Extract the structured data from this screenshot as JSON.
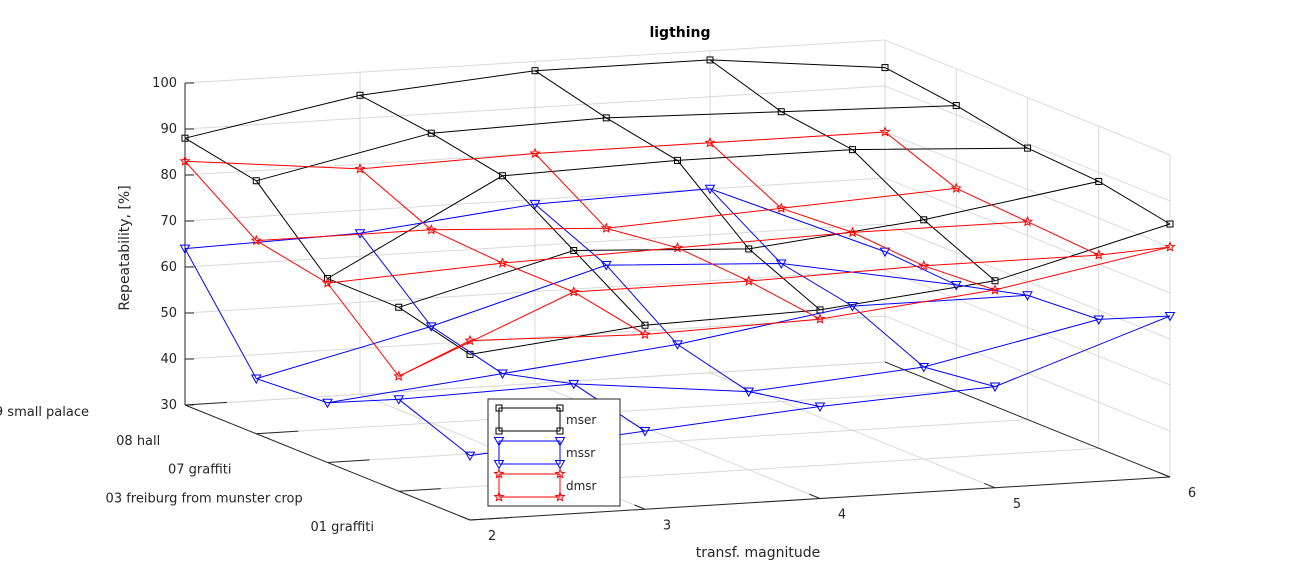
{
  "chart_data": {
    "type": "line",
    "title": "ligthing",
    "xlabel": "transf. magnitude",
    "ylabel": "",
    "zlabel": "Repeatability, [%]",
    "x": [
      2,
      3,
      4,
      5,
      6
    ],
    "x_ticks": [
      "2",
      "3",
      "4",
      "5",
      "6"
    ],
    "y_categories": [
      "01 graffiti",
      "03 freiburg from munster crop",
      "07 graffiti",
      "08 hall",
      "09 small palace"
    ],
    "z_ticks": [
      "30",
      "40",
      "50",
      "60",
      "70",
      "80",
      "90",
      "100"
    ],
    "zlim": [
      30,
      100
    ],
    "grid": true,
    "legend_position": "inside-bottom-left",
    "series": [
      {
        "name": "mser",
        "color": "#000000",
        "marker": "square",
        "lines": [
          {
            "category": "09 small palace",
            "values": [
              88,
              95,
              98,
              98,
              94
            ]
          },
          {
            "category": "08 hall",
            "values": [
              85,
              93,
              94,
              93,
              92
            ]
          },
          {
            "category": "07 graffiti",
            "values": [
              70,
              90,
              91,
              91,
              89
            ]
          },
          {
            "category": "03 freiburg from munster crop",
            "values": [
              70,
              80,
              78,
              82,
              88
            ]
          },
          {
            "category": "01 graffiti",
            "values": [
              66,
              70,
              71,
              75,
              85
            ]
          }
        ]
      },
      {
        "name": "mssr",
        "color": "#0000ff",
        "marker": "triangle-down",
        "lines": [
          {
            "category": "09 small palace",
            "values": [
              64,
              65,
              69,
              70,
              54
            ]
          },
          {
            "category": "08 hall",
            "values": [
              42,
              51,
              62,
              60,
              53
            ]
          },
          {
            "category": "07 graffiti",
            "values": [
              43,
              47,
              51,
              57,
              57
            ]
          },
          {
            "category": "03 freiburg from munster crop",
            "values": [
              50,
              51,
              47,
              50,
              58
            ]
          },
          {
            "category": "01 graffiti",
            "values": [
              44,
              47,
              50,
              52,
              65
            ]
          }
        ]
      },
      {
        "name": "dmsr",
        "color": "#ff0000",
        "marker": "star",
        "lines": [
          {
            "category": "09 small palace",
            "values": [
              83,
              79,
              80,
              80,
              80
            ]
          },
          {
            "category": "08 hall",
            "values": [
              72,
              72,
              70,
              72,
              74
            ]
          },
          {
            "category": "07 graffiti",
            "values": [
              69,
              71,
              72,
              73,
              73
            ]
          },
          {
            "category": "03 freiburg from munster crop",
            "values": [
              55,
              71,
              71,
              72,
              72
            ]
          },
          {
            "category": "01 graffiti",
            "values": [
              69,
              68,
              69,
              73,
              80
            ]
          }
        ]
      }
    ]
  }
}
